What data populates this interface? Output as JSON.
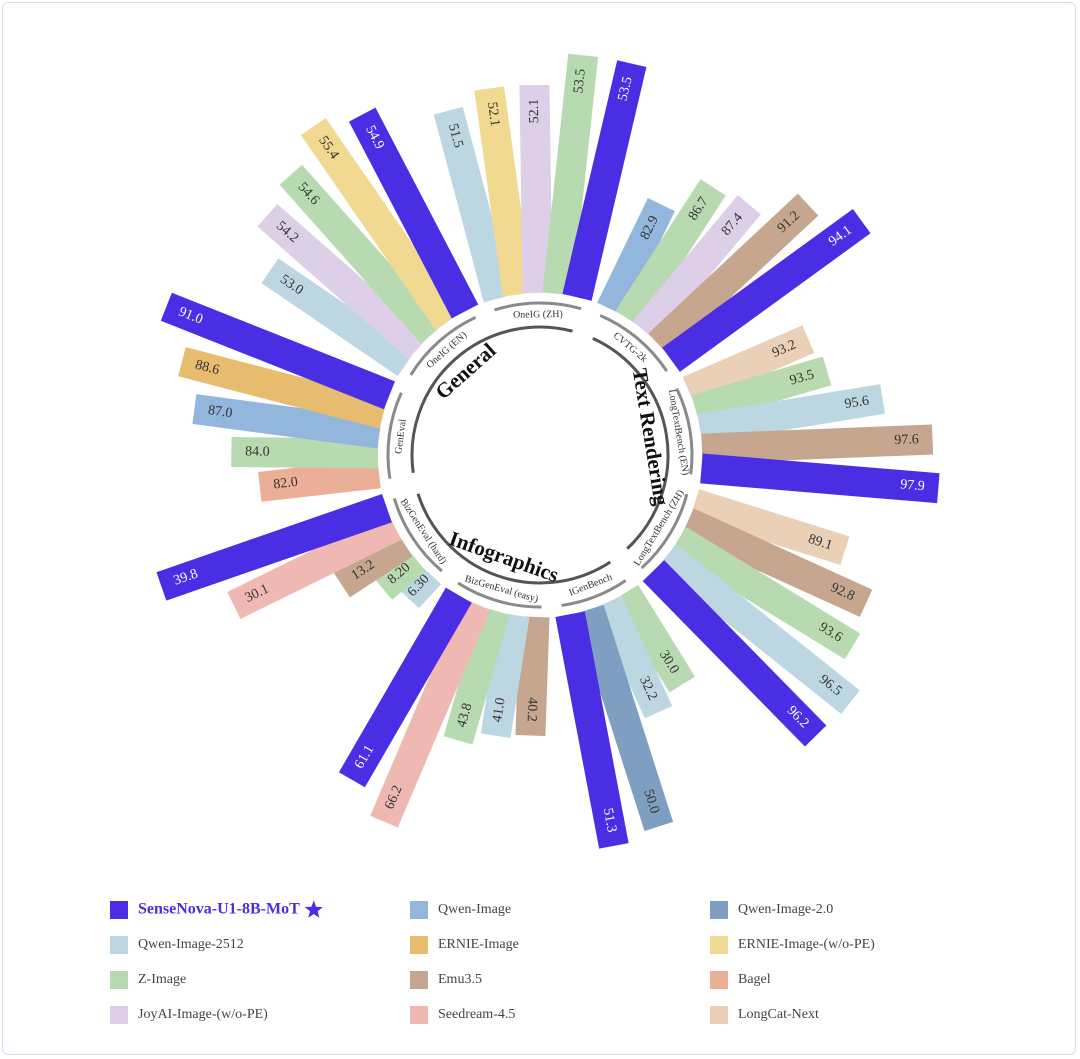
{
  "chart_data": {
    "type": "radial-bar",
    "series": [
      {
        "name": "SenseNova-U1-8B-MoT",
        "color": "#4a2ee3",
        "highlight": true
      },
      {
        "name": "Qwen-Image",
        "color": "#93b6dc"
      },
      {
        "name": "Qwen-Image-2.0",
        "color": "#7f9fc2"
      },
      {
        "name": "Qwen-Image-2512",
        "color": "#bdd7e2"
      },
      {
        "name": "ERNIE-Image",
        "color": "#e7bc6f"
      },
      {
        "name": "ERNIE-Image-(w/o-PE)",
        "color": "#f1d992"
      },
      {
        "name": "Z-Image",
        "color": "#b8dab1"
      },
      {
        "name": "Emu3.5",
        "color": "#c6a68e"
      },
      {
        "name": "Bagel",
        "color": "#ebae97"
      },
      {
        "name": "JoyAI-Image-(w/o-PE)",
        "color": "#ddcfe7"
      },
      {
        "name": "Seedream-4.5",
        "color": "#efb8b2"
      },
      {
        "name": "LongCat-Next",
        "color": "#e9d0b6"
      }
    ],
    "groups": [
      {
        "name": "General",
        "benchmarks": [
          {
            "name": "GenEval",
            "ylim": [
              73,
              91
            ],
            "series": [
              "Bagel",
              "Z-Image",
              "Qwen-Image",
              "ERNIE-Image",
              "SenseNova-U1-8B-MoT"
            ],
            "values": [
              82.0,
              84.0,
              87.0,
              88.6,
              91.0
            ],
            "value_labels": [
              "82.0",
              "84.0",
              "87.0",
              "88.6",
              "91.0"
            ]
          },
          {
            "name": "OneIG (EN)",
            "ylim": [
              47.5,
              55.5
            ],
            "series": [
              "Qwen-Image-2512",
              "JoyAI-Image-(w/o-PE)",
              "Z-Image",
              "ERNIE-Image-(w/o-PE)",
              "SenseNova-U1-8B-MoT"
            ],
            "values": [
              53.0,
              54.2,
              54.6,
              55.4,
              54.9
            ],
            "value_labels": [
              "53.0",
              "54.2",
              "54.6",
              "55.4",
              "54.9"
            ]
          },
          {
            "name": "OneIG (ZH)",
            "ylim": [
              43,
              53.5
            ],
            "series": [
              "Qwen-Image-2512",
              "ERNIE-Image-(w/o-PE)",
              "JoyAI-Image-(w/o-PE)",
              "Z-Image",
              "SenseNova-U1-8B-MoT"
            ],
            "values": [
              51.5,
              52.1,
              52.1,
              53.5,
              53.5
            ],
            "value_labels": [
              "51.5",
              "52.1",
              "52.1",
              "53.5",
              "53.5"
            ]
          }
        ]
      },
      {
        "name": "Text Rendering",
        "benchmarks": [
          {
            "name": "CVTG-2k",
            "ylim": [
              72,
              94.5
            ],
            "series": [
              "Qwen-Image",
              "Z-Image",
              "JoyAI-Image-(w/o-PE)",
              "Emu3.5",
              "SenseNova-U1-8B-MoT"
            ],
            "values": [
              82.9,
              86.7,
              87.4,
              91.2,
              94.1
            ],
            "value_labels": [
              "82.9",
              "86.7",
              "87.4",
              "91.2",
              "94.1"
            ]
          },
          {
            "name": "LongTextBench (EN)",
            "ylim": [
              87.5,
              98
            ],
            "series": [
              "LongCat-Next",
              "Z-Image",
              "Qwen-Image-2512",
              "Emu3.5",
              "SenseNova-U1-8B-MoT"
            ],
            "values": [
              93.2,
              93.5,
              95.6,
              97.6,
              97.9
            ],
            "value_labels": [
              "93.2",
              "93.5",
              "95.6",
              "97.6",
              "97.9"
            ]
          },
          {
            "name": "LongTextBench (ZH)",
            "ylim": [
              74,
              97
            ],
            "series": [
              "LongCat-Next",
              "Emu3.5",
              "Z-Image",
              "Qwen-Image-2512",
              "SenseNova-U1-8B-MoT"
            ],
            "values": [
              89.1,
              92.8,
              93.6,
              96.5,
              96.2
            ],
            "value_labels": [
              "89.1",
              "92.8",
              "93.6",
              "96.5",
              "96.2"
            ]
          }
        ]
      },
      {
        "name": "Infographics",
        "benchmarks": [
          {
            "name": "IGenBench",
            "ylim": [
              12,
              52
            ],
            "series": [
              "Z-Image",
              "Qwen-Image-2512",
              "Qwen-Image-2.0",
              "SenseNova-U1-8B-MoT"
            ],
            "values": [
              30.0,
              32.2,
              50.0,
              51.3
            ],
            "value_labels": [
              "30.0",
              "32.2",
              "50.0",
              "51.3"
            ]
          },
          {
            "name": "BizGenEval (easy)",
            "ylim": [
              14,
              67
            ],
            "series": [
              "Emu3.5",
              "Qwen-Image-2512",
              "Z-Image",
              "Seedream-4.5",
              "SenseNova-U1-8B-MoT"
            ],
            "values": [
              40.2,
              41.0,
              43.8,
              66.2,
              61.1
            ],
            "value_labels": [
              "40.2",
              "41.0",
              "43.8",
              "66.2",
              "61.1"
            ]
          },
          {
            "name": "BizGenEval (hard)",
            "ylim": [
              1,
              40
            ],
            "series": [
              "Qwen-Image-2512",
              "Z-Image",
              "Emu3.5",
              "Seedream-4.5",
              "SenseNova-U1-8B-MoT"
            ],
            "values": [
              6.3,
              8.2,
              13.2,
              30.1,
              39.8
            ],
            "value_labels": [
              "6.30",
              "8.20",
              "13.2",
              "30.1",
              "39.8"
            ]
          }
        ]
      }
    ]
  }
}
